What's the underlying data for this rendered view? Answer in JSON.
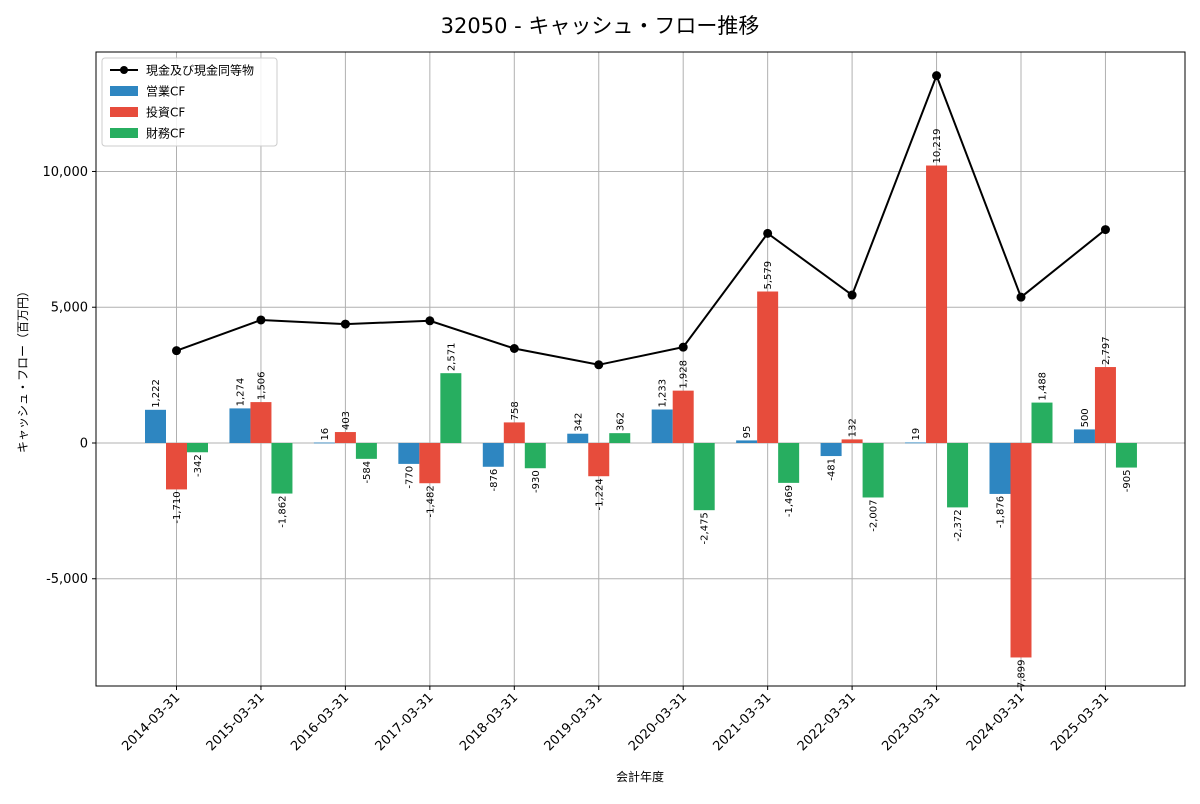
{
  "chart_data": {
    "type": "bar",
    "title": "32050 - キャッシュ・フロー推移",
    "xlabel": "会計年度",
    "ylabel": "キャッシュ・フロー（百万円）",
    "categories": [
      "2014-03-31",
      "2015-03-31",
      "2016-03-31",
      "2017-03-31",
      "2018-03-31",
      "2019-03-31",
      "2020-03-31",
      "2021-03-31",
      "2022-03-31",
      "2023-03-31",
      "2024-03-31",
      "2025-03-31"
    ],
    "ylim": [
      -8950,
      14400
    ],
    "yticks": [
      -5000,
      0,
      5000,
      10000
    ],
    "ytick_labels": [
      "-5,000",
      "0",
      "5,000",
      "10,000"
    ],
    "grid": true,
    "legend_position": "top-left",
    "series": [
      {
        "name": "営業CF",
        "kind": "bar",
        "color": "#2e86c1",
        "values": [
          1222,
          1274,
          16,
          -770,
          -876,
          342,
          1233,
          95,
          -481,
          19,
          -1876,
          500
        ],
        "labels": [
          "1,222",
          "1,274",
          "16",
          "-770",
          "-876",
          "342",
          "1,233",
          "95",
          "-481",
          "19",
          "-1,876",
          "500"
        ]
      },
      {
        "name": "投資CF",
        "kind": "bar",
        "color": "#e74c3c",
        "values": [
          -1710,
          1506,
          403,
          -1482,
          758,
          -1224,
          1928,
          5579,
          132,
          10219,
          -7899,
          2797
        ],
        "labels": [
          "-1,710",
          "1,506",
          "403",
          "-1,482",
          "758",
          "-1,224",
          "1,928",
          "5,579",
          "132",
          "10,219",
          "-7,899",
          "2,797"
        ]
      },
      {
        "name": "財務CF",
        "kind": "bar",
        "color": "#27ae60",
        "values": [
          -342,
          -1862,
          -584,
          2571,
          -930,
          362,
          -2475,
          -1469,
          -2007,
          -2372,
          1488,
          -905
        ],
        "labels": [
          "-342",
          "-1,862",
          "-584",
          "2,571",
          "-930",
          "362",
          "-2,475",
          "-1,469",
          "-2,007",
          "-2,372",
          "1,488",
          "-905"
        ]
      },
      {
        "name": "現金及び現金同等物",
        "kind": "line",
        "color": "#000000",
        "values": [
          3400,
          4530,
          4380,
          4500,
          3480,
          2880,
          3530,
          7720,
          5450,
          13530,
          5370,
          7860
        ]
      }
    ]
  }
}
